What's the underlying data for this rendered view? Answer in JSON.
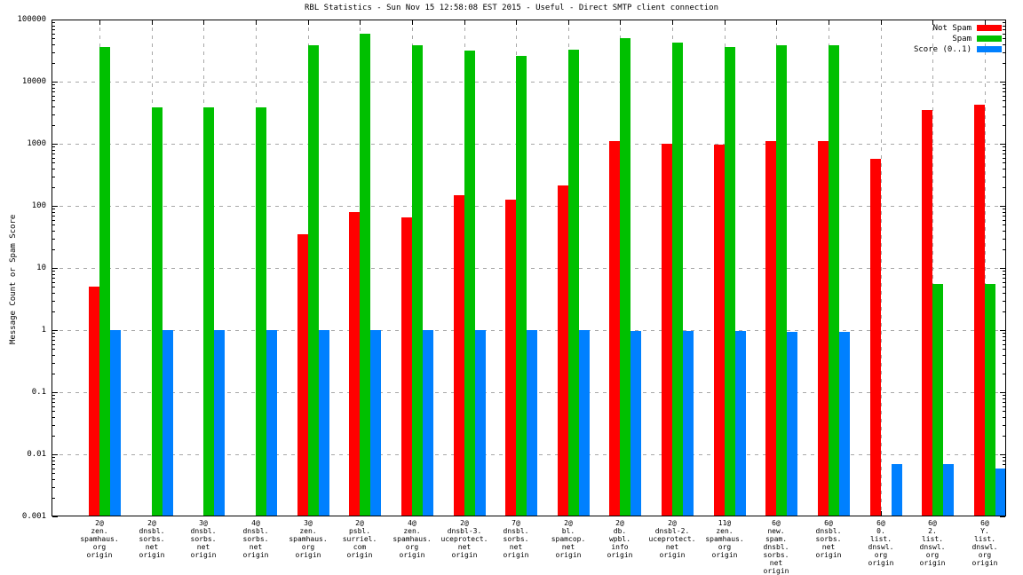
{
  "title": "RBL Statistics - Sun Nov 15 12:58:08 EST 2015 - Useful - Direct SMTP client connection",
  "chart_data": {
    "type": "bar",
    "title": "RBL Statistics - Sun Nov 15 12:58:08 EST 2015 - Useful - Direct SMTP client connection",
    "ylabel": "Message Count or Spam Score",
    "xlabel": "",
    "yscale": "log",
    "ylim": [
      0.001,
      100000
    ],
    "ytick_labels": [
      "100000",
      "10000",
      "1000",
      "100",
      "10",
      "1",
      "0.1",
      "0.01",
      "0.001"
    ],
    "grid": true,
    "legend_position": "top-right",
    "colors": {
      "not_spam": "#ff0000",
      "spam": "#00c000",
      "score": "#0080ff",
      "grid": "#a8a8a8",
      "border": "#000000"
    },
    "legend": [
      {
        "name": "Not Spam",
        "color": "#ff0000"
      },
      {
        "name": "Spam",
        "color": "#00c000"
      },
      {
        "name": "Score (0..1)",
        "color": "#0080ff"
      }
    ],
    "categories": [
      [
        "2@",
        "zen.",
        "spamhaus.",
        "org",
        "origin"
      ],
      [
        "2@",
        "dnsbl.",
        "sorbs.",
        "net",
        "origin"
      ],
      [
        "3@",
        "dnsbl.",
        "sorbs.",
        "net",
        "origin"
      ],
      [
        "4@",
        "dnsbl.",
        "sorbs.",
        "net",
        "origin"
      ],
      [
        "3@",
        "zen.",
        "spamhaus.",
        "org",
        "origin"
      ],
      [
        "2@",
        "psbl.",
        "surriel.",
        "com",
        "origin"
      ],
      [
        "4@",
        "zen.",
        "spamhaus.",
        "org",
        "origin"
      ],
      [
        "2@",
        "dnsbl-3.",
        "uceprotect.",
        "net",
        "origin"
      ],
      [
        "7@",
        "dnsbl.",
        "sorbs.",
        "net",
        "origin"
      ],
      [
        "2@",
        "bl.",
        "spamcop.",
        "net",
        "origin"
      ],
      [
        "2@",
        "db.",
        "wpbl.",
        "info",
        "origin"
      ],
      [
        "2@",
        "dnsbl-2.",
        "uceprotect.",
        "net",
        "origin"
      ],
      [
        "11@",
        "zen.",
        "spamhaus.",
        "org",
        "origin"
      ],
      [
        "6@",
        "new.",
        "spam.",
        "dnsbl.",
        "sorbs.",
        "net",
        "origin"
      ],
      [
        "6@",
        "dnsbl.",
        "sorbs.",
        "net",
        "origin"
      ],
      [
        "6@",
        "0.",
        "list.",
        "dnswl.",
        "org",
        "origin"
      ],
      [
        "6@",
        "2.",
        "list.",
        "dnswl.",
        "org",
        "origin"
      ],
      [
        "6@",
        "Y.",
        "list.",
        "dnswl.",
        "org",
        "origin"
      ]
    ],
    "series": [
      {
        "name": "Not Spam",
        "color": "#ff0000",
        "values": [
          5,
          0,
          0,
          0,
          35,
          80,
          65,
          150,
          125,
          210,
          1100,
          1000,
          970,
          1090,
          1110,
          580,
          3500,
          4200
        ]
      },
      {
        "name": "Spam",
        "color": "#00c000",
        "values": [
          36000,
          3800,
          3800,
          3800,
          38000,
          60000,
          39000,
          32000,
          26000,
          33000,
          50000,
          42000,
          36000,
          38500,
          38500,
          0,
          5.5,
          5.5
        ]
      },
      {
        "name": "Score (0..1)",
        "color": "#0080ff",
        "values": [
          1.0,
          1.0,
          1.0,
          1.0,
          1.0,
          1.0,
          1.0,
          1.0,
          1.0,
          1.0,
          0.97,
          0.97,
          0.97,
          0.95,
          0.95,
          0.007,
          0.007,
          0.006
        ]
      }
    ]
  }
}
